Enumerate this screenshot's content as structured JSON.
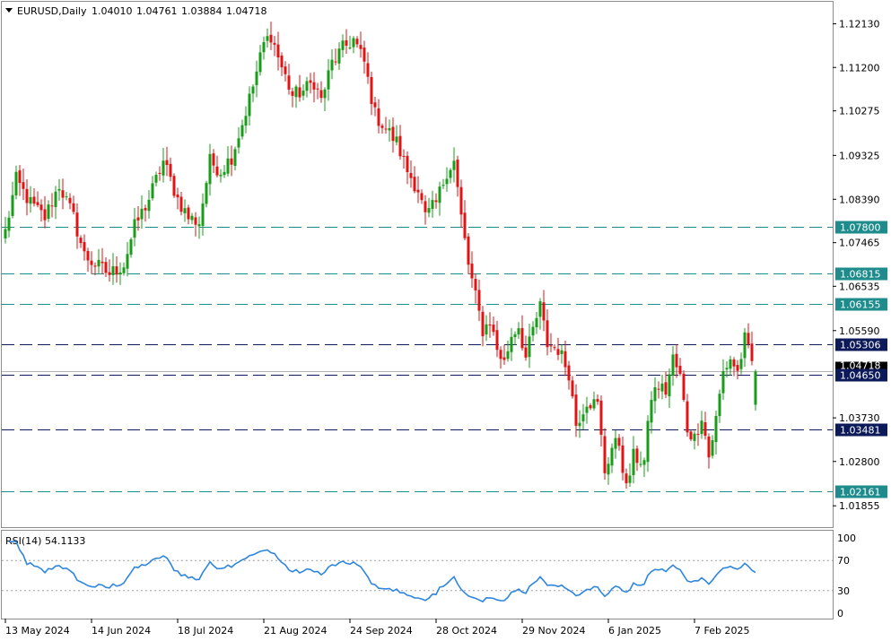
{
  "header": {
    "symbol": "EURUSD,Daily",
    "open": "1.04010",
    "high": "1.04761",
    "low": "1.03884",
    "close": "1.04718"
  },
  "rsi": {
    "label": "RSI(14) 54.1133",
    "ticks": [
      "100",
      "70",
      "30",
      "0"
    ],
    "levels": [
      70,
      30
    ],
    "color": "#2e86de"
  },
  "chart_data": {
    "type": "candlestick",
    "y_range": [
      1.014,
      1.126
    ],
    "y_ticks": [
      "1.12130",
      "1.11200",
      "1.10275",
      "1.09325",
      "1.08390",
      "1.07465",
      "1.06535",
      "1.05590",
      "1.03730",
      "1.02800",
      "1.01855"
    ],
    "x_range": [
      0,
      206
    ],
    "x_ticks": [
      {
        "i": 0,
        "label": "13 May 2024"
      },
      {
        "i": 24,
        "label": "14 Jun 2024"
      },
      {
        "i": 48,
        "label": "18 Jul 2024"
      },
      {
        "i": 72,
        "label": "21 Aug 2024"
      },
      {
        "i": 96,
        "label": "24 Sep 2024"
      },
      {
        "i": 120,
        "label": "28 Oct 2024"
      },
      {
        "i": 144,
        "label": "29 Nov 2024"
      },
      {
        "i": 168,
        "label": "6 Jan 2025"
      },
      {
        "i": 192,
        "label": "7 Feb 2025"
      }
    ],
    "levels": [
      {
        "value": 1.078,
        "label": "1.07800",
        "color": "#1e8c8c"
      },
      {
        "value": 1.06815,
        "label": "1.06815",
        "color": "#1e8c8c"
      },
      {
        "value": 1.06155,
        "label": "1.06155",
        "color": "#1e8c8c"
      },
      {
        "value": 1.05306,
        "label": "1.05306",
        "color": "#0c1a5a"
      },
      {
        "value": 1.0465,
        "label": "1.04650",
        "color": "#0c1a5a"
      },
      {
        "value": 1.03481,
        "label": "1.03481",
        "color": "#0c1a5a"
      },
      {
        "value": 1.02161,
        "label": "1.02161",
        "color": "#1e8c8c"
      }
    ],
    "current_price": {
      "value": 1.04718,
      "label": "1.04718"
    },
    "colors": {
      "bull": "#1a9c1a",
      "bear": "#e01414"
    },
    "anchors": [
      [
        0,
        1.077
      ],
      [
        3,
        1.088
      ],
      [
        7,
        1.083
      ],
      [
        11,
        1.08
      ],
      [
        15,
        1.087
      ],
      [
        19,
        1.08
      ],
      [
        22,
        1.072
      ],
      [
        25,
        1.07
      ],
      [
        29,
        1.068
      ],
      [
        33,
        1.07
      ],
      [
        36,
        1.078
      ],
      [
        40,
        1.084
      ],
      [
        44,
        1.092
      ],
      [
        48,
        1.084
      ],
      [
        51,
        1.08
      ],
      [
        54,
        1.079
      ],
      [
        57,
        1.092
      ],
      [
        60,
        1.09
      ],
      [
        63,
        1.093
      ],
      [
        66,
        1.1
      ],
      [
        69,
        1.108
      ],
      [
        72,
        1.117
      ],
      [
        74,
        1.119
      ],
      [
        77,
        1.112
      ],
      [
        80,
        1.106
      ],
      [
        83,
        1.107
      ],
      [
        86,
        1.109
      ],
      [
        88,
        1.105
      ],
      [
        91,
        1.113
      ],
      [
        94,
        1.116
      ],
      [
        97,
        1.118
      ],
      [
        100,
        1.113
      ],
      [
        103,
        1.102
      ],
      [
        106,
        1.099
      ],
      [
        109,
        1.096
      ],
      [
        112,
        1.09
      ],
      [
        115,
        1.086
      ],
      [
        117,
        1.08
      ],
      [
        120,
        1.083
      ],
      [
        123,
        1.09
      ],
      [
        125,
        1.092
      ],
      [
        127,
        1.08
      ],
      [
        129,
        1.07
      ],
      [
        131,
        1.063
      ],
      [
        133,
        1.056
      ],
      [
        135,
        1.058
      ],
      [
        137,
        1.052
      ],
      [
        139,
        1.049
      ],
      [
        141,
        1.055
      ],
      [
        143,
        1.057
      ],
      [
        145,
        1.05
      ],
      [
        147,
        1.056
      ],
      [
        149,
        1.061
      ],
      [
        151,
        1.053
      ],
      [
        154,
        1.052
      ],
      [
        157,
        1.047
      ],
      [
        159,
        1.036
      ],
      [
        162,
        1.041
      ],
      [
        165,
        1.04
      ],
      [
        167,
        1.026
      ],
      [
        169,
        1.031
      ],
      [
        171,
        1.032
      ],
      [
        173,
        1.022
      ],
      [
        175,
        1.029
      ],
      [
        178,
        1.028
      ],
      [
        180,
        1.042
      ],
      [
        182,
        1.044
      ],
      [
        184,
        1.043
      ],
      [
        186,
        1.05
      ],
      [
        188,
        1.046
      ],
      [
        190,
        1.035
      ],
      [
        192,
        1.033
      ],
      [
        194,
        1.038
      ],
      [
        196,
        1.029
      ],
      [
        198,
        1.037
      ],
      [
        200,
        1.047
      ],
      [
        202,
        1.05
      ],
      [
        204,
        1.047
      ],
      [
        206,
        1.054
      ],
      [
        208,
        1.049
      ],
      [
        209,
        1.0401
      ]
    ],
    "last_candle": {
      "open": 1.0401,
      "high": 1.04761,
      "low": 1.03884,
      "close": 1.04718
    }
  }
}
